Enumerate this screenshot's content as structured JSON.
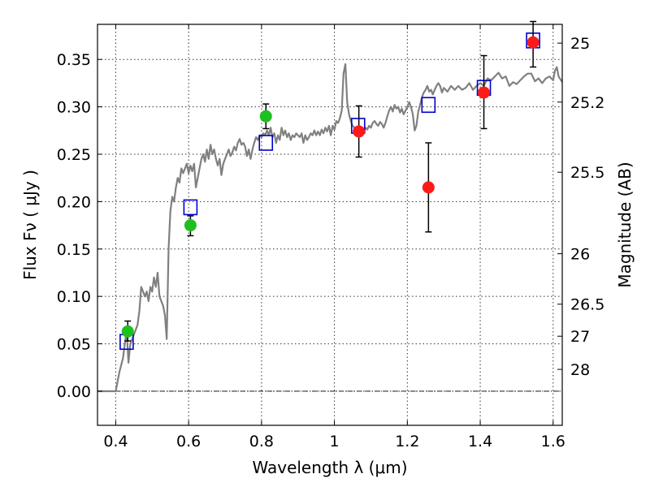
{
  "chart_data": {
    "type": "scatter",
    "xlabel": "Wavelength  λ (μm)",
    "ylabel": "Flux  Fν  ( μJy )",
    "ylabel_right": "Magnitude (AB)",
    "xlim": [
      0.35,
      1.625
    ],
    "ylim": [
      -0.036,
      0.387
    ],
    "grid": true,
    "x_ticks": [
      {
        "value": 0.4,
        "label": "0.4"
      },
      {
        "value": 0.6,
        "label": "0.6"
      },
      {
        "value": 0.8,
        "label": "0.8"
      },
      {
        "value": 1.0,
        "label": "1"
      },
      {
        "value": 1.2,
        "label": "1.2"
      },
      {
        "value": 1.4,
        "label": "1.4"
      },
      {
        "value": 1.6,
        "label": "1.6"
      }
    ],
    "y_ticks": [
      {
        "value": 0.0,
        "label": "0.00"
      },
      {
        "value": 0.05,
        "label": "0.05"
      },
      {
        "value": 0.1,
        "label": "0.10"
      },
      {
        "value": 0.15,
        "label": "0.15"
      },
      {
        "value": 0.2,
        "label": "0.20"
      },
      {
        "value": 0.25,
        "label": "0.25"
      },
      {
        "value": 0.3,
        "label": "0.30"
      },
      {
        "value": 0.35,
        "label": "0.35"
      }
    ],
    "right_ticks": [
      {
        "flux": 0.3672,
        "label": "25"
      },
      {
        "flux": 0.305,
        "label": "25.2"
      },
      {
        "flux": 0.231,
        "label": "25.5"
      },
      {
        "flux": 0.145,
        "label": "26"
      },
      {
        "flux": 0.0918,
        "label": "26.5"
      },
      {
        "flux": 0.058,
        "label": "27"
      },
      {
        "flux": 0.023,
        "label": "28"
      }
    ],
    "series": [
      {
        "kind": "line",
        "color": "#808080",
        "points": [
          [
            0.35,
            0.0
          ],
          [
            0.4,
            0.0
          ],
          [
            0.41,
            0.02
          ],
          [
            0.42,
            0.035
          ],
          [
            0.43,
            0.065
          ],
          [
            0.435,
            0.03
          ],
          [
            0.44,
            0.05
          ],
          [
            0.45,
            0.06
          ],
          [
            0.46,
            0.07
          ],
          [
            0.465,
            0.085
          ],
          [
            0.47,
            0.11
          ],
          [
            0.475,
            0.105
          ],
          [
            0.48,
            0.1
          ],
          [
            0.485,
            0.105
          ],
          [
            0.49,
            0.095
          ],
          [
            0.495,
            0.11
          ],
          [
            0.5,
            0.105
          ],
          [
            0.505,
            0.12
          ],
          [
            0.51,
            0.11
          ],
          [
            0.515,
            0.125
          ],
          [
            0.52,
            0.1
          ],
          [
            0.525,
            0.095
          ],
          [
            0.53,
            0.09
          ],
          [
            0.535,
            0.08
          ],
          [
            0.54,
            0.055
          ],
          [
            0.545,
            0.15
          ],
          [
            0.55,
            0.19
          ],
          [
            0.555,
            0.205
          ],
          [
            0.56,
            0.2
          ],
          [
            0.565,
            0.215
          ],
          [
            0.57,
            0.225
          ],
          [
            0.575,
            0.22
          ],
          [
            0.58,
            0.235
          ],
          [
            0.585,
            0.23
          ],
          [
            0.59,
            0.235
          ],
          [
            0.595,
            0.24
          ],
          [
            0.6,
            0.23
          ],
          [
            0.605,
            0.238
          ],
          [
            0.61,
            0.232
          ],
          [
            0.615,
            0.24
          ],
          [
            0.62,
            0.215
          ],
          [
            0.625,
            0.225
          ],
          [
            0.63,
            0.235
          ],
          [
            0.635,
            0.245
          ],
          [
            0.64,
            0.25
          ],
          [
            0.645,
            0.242
          ],
          [
            0.65,
            0.255
          ],
          [
            0.655,
            0.245
          ],
          [
            0.66,
            0.26
          ],
          [
            0.665,
            0.25
          ],
          [
            0.67,
            0.255
          ],
          [
            0.675,
            0.245
          ],
          [
            0.68,
            0.238
          ],
          [
            0.685,
            0.245
          ],
          [
            0.69,
            0.228
          ],
          [
            0.695,
            0.24
          ],
          [
            0.7,
            0.245
          ],
          [
            0.705,
            0.25
          ],
          [
            0.71,
            0.255
          ],
          [
            0.715,
            0.248
          ],
          [
            0.72,
            0.252
          ],
          [
            0.725,
            0.258
          ],
          [
            0.73,
            0.254
          ],
          [
            0.735,
            0.262
          ],
          [
            0.74,
            0.266
          ],
          [
            0.745,
            0.26
          ],
          [
            0.75,
            0.262
          ],
          [
            0.755,
            0.258
          ],
          [
            0.76,
            0.248
          ],
          [
            0.765,
            0.255
          ],
          [
            0.77,
            0.245
          ],
          [
            0.775,
            0.255
          ],
          [
            0.78,
            0.262
          ],
          [
            0.785,
            0.268
          ],
          [
            0.79,
            0.265
          ],
          [
            0.795,
            0.27
          ],
          [
            0.8,
            0.268
          ],
          [
            0.805,
            0.272
          ],
          [
            0.81,
            0.27
          ],
          [
            0.815,
            0.275
          ],
          [
            0.82,
            0.27
          ],
          [
            0.825,
            0.278
          ],
          [
            0.83,
            0.268
          ],
          [
            0.835,
            0.272
          ],
          [
            0.84,
            0.262
          ],
          [
            0.845,
            0.27
          ],
          [
            0.85,
            0.265
          ],
          [
            0.855,
            0.278
          ],
          [
            0.86,
            0.27
          ],
          [
            0.865,
            0.275
          ],
          [
            0.87,
            0.268
          ],
          [
            0.875,
            0.272
          ],
          [
            0.88,
            0.265
          ],
          [
            0.885,
            0.27
          ],
          [
            0.89,
            0.268
          ],
          [
            0.895,
            0.272
          ],
          [
            0.9,
            0.27
          ],
          [
            0.905,
            0.268
          ],
          [
            0.91,
            0.272
          ],
          [
            0.915,
            0.262
          ],
          [
            0.92,
            0.27
          ],
          [
            0.925,
            0.265
          ],
          [
            0.93,
            0.268
          ],
          [
            0.935,
            0.272
          ],
          [
            0.94,
            0.27
          ],
          [
            0.945,
            0.275
          ],
          [
            0.95,
            0.27
          ],
          [
            0.955,
            0.274
          ],
          [
            0.96,
            0.27
          ],
          [
            0.965,
            0.276
          ],
          [
            0.97,
            0.272
          ],
          [
            0.975,
            0.278
          ],
          [
            0.98,
            0.274
          ],
          [
            0.985,
            0.28
          ],
          [
            0.99,
            0.27
          ],
          [
            0.995,
            0.28
          ],
          [
            1.0,
            0.276
          ],
          [
            1.005,
            0.285
          ],
          [
            1.01,
            0.283
          ],
          [
            1.015,
            0.288
          ],
          [
            1.02,
            0.296
          ],
          [
            1.025,
            0.335
          ],
          [
            1.03,
            0.345
          ],
          [
            1.035,
            0.305
          ],
          [
            1.04,
            0.292
          ],
          [
            1.045,
            0.285
          ],
          [
            1.05,
            0.28
          ],
          [
            1.055,
            0.278
          ],
          [
            1.06,
            0.275
          ],
          [
            1.065,
            0.272
          ],
          [
            1.07,
            0.27
          ],
          [
            1.075,
            0.275
          ],
          [
            1.08,
            0.272
          ],
          [
            1.085,
            0.278
          ],
          [
            1.09,
            0.276
          ],
          [
            1.095,
            0.28
          ],
          [
            1.1,
            0.278
          ],
          [
            1.105,
            0.283
          ],
          [
            1.11,
            0.285
          ],
          [
            1.115,
            0.282
          ],
          [
            1.12,
            0.28
          ],
          [
            1.125,
            0.284
          ],
          [
            1.13,
            0.282
          ],
          [
            1.135,
            0.278
          ],
          [
            1.14,
            0.283
          ],
          [
            1.145,
            0.29
          ],
          [
            1.15,
            0.296
          ],
          [
            1.155,
            0.3
          ],
          [
            1.16,
            0.295
          ],
          [
            1.165,
            0.302
          ],
          [
            1.17,
            0.298
          ],
          [
            1.175,
            0.3
          ],
          [
            1.18,
            0.294
          ],
          [
            1.185,
            0.298
          ],
          [
            1.19,
            0.292
          ],
          [
            1.195,
            0.296
          ],
          [
            1.2,
            0.3
          ],
          [
            1.205,
            0.305
          ],
          [
            1.21,
            0.3
          ],
          [
            1.215,
            0.292
          ],
          [
            1.22,
            0.275
          ],
          [
            1.225,
            0.28
          ],
          [
            1.23,
            0.295
          ],
          [
            1.235,
            0.302
          ],
          [
            1.24,
            0.31
          ],
          [
            1.245,
            0.315
          ],
          [
            1.25,
            0.318
          ],
          [
            1.255,
            0.322
          ],
          [
            1.26,
            0.316
          ],
          [
            1.265,
            0.318
          ],
          [
            1.27,
            0.313
          ],
          [
            1.275,
            0.318
          ],
          [
            1.28,
            0.322
          ],
          [
            1.285,
            0.325
          ],
          [
            1.29,
            0.322
          ],
          [
            1.295,
            0.315
          ],
          [
            1.3,
            0.32
          ],
          [
            1.31,
            0.316
          ],
          [
            1.32,
            0.322
          ],
          [
            1.33,
            0.318
          ],
          [
            1.34,
            0.322
          ],
          [
            1.35,
            0.318
          ],
          [
            1.36,
            0.32
          ],
          [
            1.37,
            0.325
          ],
          [
            1.38,
            0.318
          ],
          [
            1.39,
            0.322
          ],
          [
            1.4,
            0.325
          ],
          [
            1.41,
            0.322
          ],
          [
            1.42,
            0.33
          ],
          [
            1.43,
            0.328
          ],
          [
            1.44,
            0.332
          ],
          [
            1.45,
            0.336
          ],
          [
            1.46,
            0.33
          ],
          [
            1.47,
            0.332
          ],
          [
            1.48,
            0.322
          ],
          [
            1.49,
            0.326
          ],
          [
            1.5,
            0.324
          ],
          [
            1.51,
            0.328
          ],
          [
            1.52,
            0.332
          ],
          [
            1.53,
            0.335
          ],
          [
            1.54,
            0.335
          ],
          [
            1.55,
            0.327
          ],
          [
            1.56,
            0.33
          ],
          [
            1.57,
            0.325
          ],
          [
            1.58,
            0.33
          ],
          [
            1.59,
            0.332
          ],
          [
            1.6,
            0.328
          ],
          [
            1.605,
            0.338
          ],
          [
            1.61,
            0.342
          ],
          [
            1.615,
            0.332
          ],
          [
            1.625,
            0.326
          ]
        ]
      },
      {
        "kind": "squares",
        "color": "#0000cc",
        "points": [
          {
            "x": 0.43,
            "y": 0.052
          },
          {
            "x": 0.605,
            "y": 0.194
          },
          {
            "x": 0.812,
            "y": 0.262
          },
          {
            "x": 1.065,
            "y": 0.28
          },
          {
            "x": 1.258,
            "y": 0.302
          },
          {
            "x": 1.41,
            "y": 0.32
          },
          {
            "x": 1.545,
            "y": 0.37
          }
        ]
      },
      {
        "kind": "dots",
        "color": "#1fbf1f",
        "points": [
          {
            "x": 0.433,
            "y": 0.063,
            "lo": 0.053,
            "hi": 0.074
          },
          {
            "x": 0.605,
            "y": 0.175,
            "lo": 0.164,
            "hi": 0.185
          },
          {
            "x": 0.812,
            "y": 0.29,
            "lo": 0.277,
            "hi": 0.303
          }
        ]
      },
      {
        "kind": "dots",
        "color": "#ff1a1a",
        "points": [
          {
            "x": 1.067,
            "y": 0.274,
            "lo": 0.247,
            "hi": 0.301
          },
          {
            "x": 1.258,
            "y": 0.215,
            "lo": 0.168,
            "hi": 0.262
          },
          {
            "x": 1.41,
            "y": 0.315,
            "lo": 0.277,
            "hi": 0.354
          },
          {
            "x": 1.545,
            "y": 0.368,
            "lo": 0.342,
            "hi": 0.39
          }
        ]
      }
    ]
  }
}
